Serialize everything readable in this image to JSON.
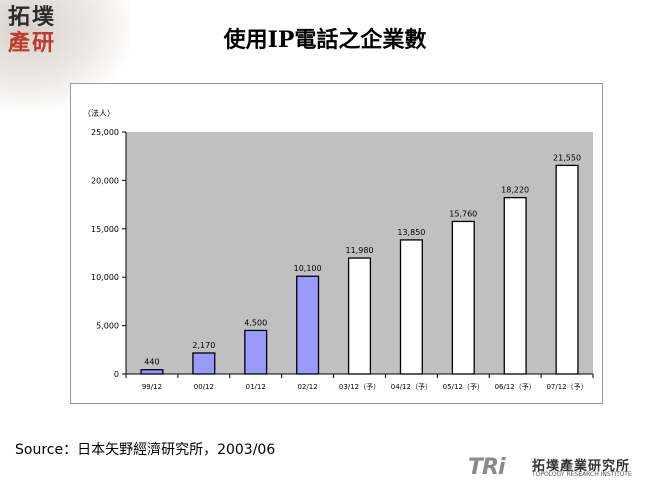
{
  "logo": {
    "line1": "拓墣",
    "line2": "產研"
  },
  "slide_title": "使用IP電話之企業數",
  "chart_data": {
    "type": "bar",
    "title": "",
    "xlabel": "",
    "ylabel": "（法人）",
    "ylim": [
      0,
      25000
    ],
    "yticks": [
      "0",
      "5,000",
      "10,000",
      "15,000",
      "20,000",
      "25,000"
    ],
    "ytick_values": [
      0,
      5000,
      10000,
      15000,
      20000,
      25000
    ],
    "grid": false,
    "categories": [
      "99/12",
      "00/12",
      "01/12",
      "02/12",
      "03/12（予）",
      "04/12（予）",
      "05/12（予）",
      "06/12（予）",
      "07/12（予）"
    ],
    "values": [
      440,
      2170,
      4500,
      10100,
      11980,
      13850,
      15760,
      18220,
      21550
    ],
    "value_labels": [
      "440",
      "2,170",
      "4,500",
      "10,100",
      "11,980",
      "13,850",
      "15,760",
      "18,220",
      "21,550"
    ],
    "bar_styles": [
      "actual",
      "actual",
      "actual",
      "actual",
      "forecast",
      "forecast",
      "forecast",
      "forecast",
      "forecast"
    ],
    "colors": {
      "actual": "#9999ff",
      "forecast": "#ffffff",
      "plot_bg": "#c0c0c0",
      "outline": "#000000"
    }
  },
  "source": "Source：日本矢野經濟研究所，2003/06",
  "footer_logo": {
    "mark": "TRi",
    "name_cn": "拓墣產業研究所",
    "name_en": "TOPOLOGY RESEARCH INSTITUTE"
  }
}
